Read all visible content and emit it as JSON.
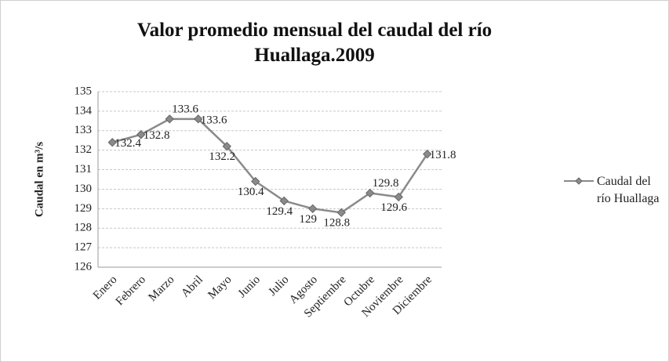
{
  "chart_data": {
    "type": "line",
    "title": "Valor promedio mensual del caudal del río Huallaga.2009",
    "y_label": "Caudal en m³/s",
    "categories": [
      "Enero",
      "Febrero",
      "Marzo",
      "Abril",
      "Mayo",
      "Junio",
      "Julio",
      "Agosto",
      "Septiembre",
      "Octubre",
      "Noviembre",
      "Diciembre"
    ],
    "series": [
      {
        "name": "Caudal del río Huallaga",
        "color": "#8a8a8a",
        "values": [
          132.4,
          132.8,
          133.6,
          133.6,
          132.2,
          130.4,
          129.4,
          129,
          128.8,
          129.8,
          129.6,
          131.8
        ]
      }
    ],
    "ylim": [
      126,
      135
    ],
    "yticks": [
      126,
      127,
      128,
      129,
      130,
      131,
      132,
      133,
      134,
      135
    ],
    "grid": true,
    "legend": "right"
  }
}
